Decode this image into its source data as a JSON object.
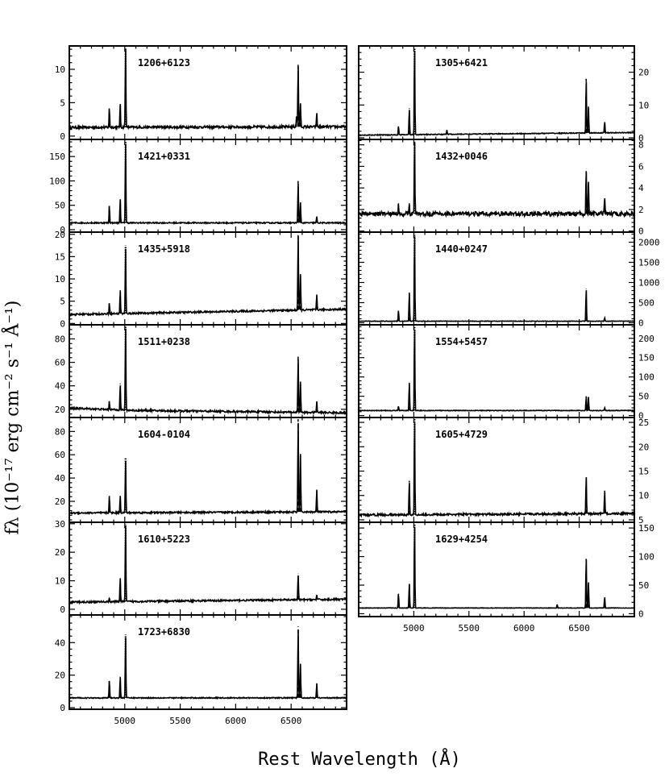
{
  "y_axis_label": "fλ (10⁻¹⁷ erg cm⁻² s⁻¹ Å⁻¹)",
  "x_axis_label": "Rest Wavelength (Å)",
  "chart_data": [
    {
      "type": "line",
      "column": "left",
      "name": "1206+6123",
      "xlim": [
        4500,
        7000
      ],
      "ylim": [
        -0.5,
        13.5
      ],
      "yticks": [
        0,
        5,
        10
      ],
      "continuum": [
        [
          4500,
          1.3
        ],
        [
          7000,
          1.4
        ]
      ],
      "noise": 0.18,
      "lines": [
        {
          "x": 4861,
          "peak": 4.2
        },
        {
          "x": 4959,
          "peak": 4.8
        },
        {
          "x": 5007,
          "peak": 13.5
        },
        {
          "x": 6548,
          "peak": 3.0
        },
        {
          "x": 6563,
          "peak": 11.0
        },
        {
          "x": 6584,
          "peak": 5.0
        },
        {
          "x": 6731,
          "peak": 3.4
        }
      ]
    },
    {
      "type": "line",
      "column": "left",
      "name": "1421+0331",
      "xlim": [
        4500,
        7000
      ],
      "ylim": [
        -5,
        185
      ],
      "yticks": [
        0,
        50,
        100,
        150
      ],
      "continuum": [
        [
          4500,
          14
        ],
        [
          7000,
          14
        ]
      ],
      "noise": 1.2,
      "lines": [
        {
          "x": 4861,
          "peak": 50
        },
        {
          "x": 4959,
          "peak": 65
        },
        {
          "x": 5007,
          "peak": 185
        },
        {
          "x": 6563,
          "peak": 100
        },
        {
          "x": 6584,
          "peak": 55
        },
        {
          "x": 6731,
          "peak": 27
        }
      ]
    },
    {
      "type": "line",
      "column": "left",
      "name": "1435+5918",
      "xlim": [
        4500,
        7000
      ],
      "ylim": [
        -0.3,
        20.5
      ],
      "yticks": [
        0,
        5,
        10,
        15,
        20
      ],
      "continuum": [
        [
          4500,
          2.0
        ],
        [
          7000,
          3.2
        ]
      ],
      "noise": 0.2,
      "lines": [
        {
          "x": 4861,
          "peak": 4.8
        },
        {
          "x": 4959,
          "peak": 7.5
        },
        {
          "x": 5007,
          "peak": 17.5
        },
        {
          "x": 6563,
          "peak": 20.5
        },
        {
          "x": 6584,
          "peak": 11.0
        },
        {
          "x": 6731,
          "peak": 6.5
        }
      ]
    },
    {
      "type": "line",
      "column": "left",
      "name": "1511+0238",
      "xlim": [
        4500,
        7000
      ],
      "ylim": [
        13,
        92
      ],
      "yticks": [
        20,
        40,
        60,
        80
      ],
      "continuum": [
        [
          4500,
          21
        ],
        [
          5100,
          19
        ],
        [
          7000,
          17
        ]
      ],
      "noise": 0.8,
      "lines": [
        {
          "x": 4861,
          "peak": 27
        },
        {
          "x": 4959,
          "peak": 42
        },
        {
          "x": 5007,
          "peak": 92
        },
        {
          "x": 6563,
          "peak": 65
        },
        {
          "x": 6584,
          "peak": 43
        },
        {
          "x": 6731,
          "peak": 27
        }
      ]
    },
    {
      "type": "line",
      "column": "left",
      "name": "1604-0104",
      "xlim": [
        4500,
        7000
      ],
      "ylim": [
        2,
        92
      ],
      "yticks": [
        20,
        40,
        60,
        80
      ],
      "continuum": [
        [
          4500,
          10
        ],
        [
          7000,
          11
        ]
      ],
      "noise": 0.7,
      "lines": [
        {
          "x": 4861,
          "peak": 25
        },
        {
          "x": 4959,
          "peak": 25
        },
        {
          "x": 5007,
          "peak": 57
        },
        {
          "x": 6563,
          "peak": 92
        },
        {
          "x": 6584,
          "peak": 60
        },
        {
          "x": 6731,
          "peak": 30
        }
      ]
    },
    {
      "type": "line",
      "column": "left",
      "name": "1610+5223",
      "xlim": [
        4500,
        7000
      ],
      "ylim": [
        -2,
        30.5
      ],
      "yticks": [
        0,
        10,
        20,
        30
      ],
      "continuum": [
        [
          4500,
          2.5
        ],
        [
          7000,
          3.5
        ]
      ],
      "noise": 0.3,
      "lines": [
        {
          "x": 4861,
          "peak": 4.0
        },
        {
          "x": 4959,
          "peak": 11.5
        },
        {
          "x": 5007,
          "peak": 30.5
        },
        {
          "x": 6563,
          "peak": 12.5
        },
        {
          "x": 6731,
          "peak": 5.0
        }
      ]
    },
    {
      "type": "line",
      "column": "left",
      "name": "1723+6830",
      "xlim": [
        4500,
        7000
      ],
      "ylim": [
        -1,
        57
      ],
      "yticks": [
        0,
        20,
        40
      ],
      "continuum": [
        [
          4500,
          6
        ],
        [
          7000,
          6
        ]
      ],
      "noise": 0.3,
      "lines": [
        {
          "x": 4861,
          "peak": 17
        },
        {
          "x": 4959,
          "peak": 19
        },
        {
          "x": 5007,
          "peak": 45
        },
        {
          "x": 6563,
          "peak": 50
        },
        {
          "x": 6584,
          "peak": 27
        },
        {
          "x": 6731,
          "peak": 15
        }
      ]
    },
    {
      "type": "line",
      "column": "right",
      "name": "1305+6421",
      "xlim": [
        4500,
        7000
      ],
      "ylim": [
        -0.5,
        28
      ],
      "yticks": [
        0,
        10,
        20
      ],
      "continuum": [
        [
          4500,
          0.8
        ],
        [
          7000,
          1.6
        ]
      ],
      "noise": 0.12,
      "lines": [
        {
          "x": 4861,
          "peak": 3.5
        },
        {
          "x": 4959,
          "peak": 9.0
        },
        {
          "x": 5007,
          "peak": 28
        },
        {
          "x": 5300,
          "peak": 2.5
        },
        {
          "x": 6563,
          "peak": 18
        },
        {
          "x": 6584,
          "peak": 9.5
        },
        {
          "x": 6731,
          "peak": 5.0
        }
      ]
    },
    {
      "type": "line",
      "column": "right",
      "name": "1432+0046",
      "xlim": [
        4500,
        7000
      ],
      "ylim": [
        -0.1,
        8.5
      ],
      "yticks": [
        0,
        2,
        4,
        6,
        8
      ],
      "continuum": [
        [
          4500,
          1.6
        ],
        [
          7000,
          1.6
        ]
      ],
      "noise": 0.2,
      "lines": [
        {
          "x": 4861,
          "peak": 2.6
        },
        {
          "x": 4959,
          "peak": 2.6
        },
        {
          "x": 5007,
          "peak": 8.5
        },
        {
          "x": 6563,
          "peak": 5.8
        },
        {
          "x": 6584,
          "peak": 4.5
        },
        {
          "x": 6731,
          "peak": 3.0
        }
      ]
    },
    {
      "type": "line",
      "column": "right",
      "name": "1440+0247",
      "xlim": [
        4500,
        7000
      ],
      "ylim": [
        -50,
        2250
      ],
      "yticks": [
        0,
        500,
        1000,
        1500,
        2000
      ],
      "continuum": [
        [
          4500,
          40
        ],
        [
          7000,
          40
        ]
      ],
      "noise": 6,
      "lines": [
        {
          "x": 4861,
          "peak": 300
        },
        {
          "x": 4959,
          "peak": 750
        },
        {
          "x": 5007,
          "peak": 2250
        },
        {
          "x": 6563,
          "peak": 850
        },
        {
          "x": 6731,
          "peak": 120
        }
      ]
    },
    {
      "type": "line",
      "column": "right",
      "name": "1554+5457",
      "xlim": [
        4500,
        7000
      ],
      "ylim": [
        -5,
        235
      ],
      "yticks": [
        0,
        50,
        100,
        150,
        200
      ],
      "continuum": [
        [
          4500,
          13
        ],
        [
          7000,
          13
        ]
      ],
      "noise": 0.8,
      "lines": [
        {
          "x": 4861,
          "peak": 25
        },
        {
          "x": 4959,
          "peak": 85
        },
        {
          "x": 5007,
          "peak": 235
        },
        {
          "x": 6563,
          "peak": 50
        },
        {
          "x": 6584,
          "peak": 48
        },
        {
          "x": 6731,
          "peak": 20
        }
      ]
    },
    {
      "type": "line",
      "column": "right",
      "name": "1605+4729",
      "xlim": [
        4500,
        7000
      ],
      "ylim": [
        4.5,
        26
      ],
      "yticks": [
        5,
        10,
        15,
        20,
        25
      ],
      "continuum": [
        [
          4500,
          6
        ],
        [
          7000,
          6.3
        ]
      ],
      "noise": 0.2,
      "lines": [
        {
          "x": 4959,
          "peak": 13
        },
        {
          "x": 5007,
          "peak": 26
        },
        {
          "x": 6563,
          "peak": 14
        },
        {
          "x": 6731,
          "peak": 11
        }
      ]
    },
    {
      "type": "line",
      "column": "right",
      "name": "1629+4254",
      "xlim": [
        4500,
        7000
      ],
      "ylim": [
        -5,
        160
      ],
      "yticks": [
        0,
        50,
        100,
        150
      ],
      "continuum": [
        [
          4500,
          10
        ],
        [
          7000,
          10
        ]
      ],
      "noise": 0.4,
      "lines": [
        {
          "x": 4861,
          "peak": 35
        },
        {
          "x": 4959,
          "peak": 55
        },
        {
          "x": 5007,
          "peak": 160
        },
        {
          "x": 6300,
          "peak": 16
        },
        {
          "x": 6563,
          "peak": 100
        },
        {
          "x": 6584,
          "peak": 55
        },
        {
          "x": 6731,
          "peak": 30
        }
      ]
    }
  ],
  "x_ticks": [
    5000,
    5500,
    6000,
    6500
  ]
}
